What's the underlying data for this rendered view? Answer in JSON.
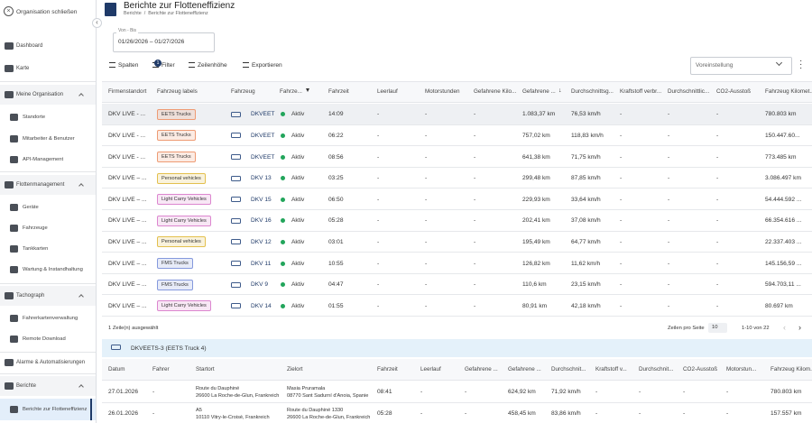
{
  "sidebar": {
    "close": "Organisation schließen",
    "items": [
      {
        "label": "Dashboard",
        "kind": "top"
      },
      {
        "label": "Karte",
        "kind": "top"
      },
      {
        "label": "Meine Organisation",
        "kind": "section"
      },
      {
        "label": "Standorte",
        "kind": "sub"
      },
      {
        "label": "Mitarbeiter & Benutzer",
        "kind": "sub"
      },
      {
        "label": "API-Management",
        "kind": "sub"
      },
      {
        "label": "Flottenmanagement",
        "kind": "section"
      },
      {
        "label": "Geräte",
        "kind": "sub"
      },
      {
        "label": "Fahrzeuge",
        "kind": "sub"
      },
      {
        "label": "Tankkarten",
        "kind": "sub"
      },
      {
        "label": "Wartung & Instandhaltung",
        "kind": "sub"
      },
      {
        "label": "Tachograph",
        "kind": "section"
      },
      {
        "label": "Fahrerkartenverwaltung",
        "kind": "sub"
      },
      {
        "label": "Remote Download",
        "kind": "sub"
      },
      {
        "label": "Alarme & Automatisierungen",
        "kind": "top"
      },
      {
        "label": "Berichte",
        "kind": "section"
      },
      {
        "label": "Berichte zur Flotteneffizienz",
        "kind": "active"
      }
    ]
  },
  "header": {
    "title": "Berichte zur Flotteneffizienz",
    "breadcrumb": [
      "Berichte",
      "/",
      "Berichte zur Flotteneffizienz"
    ]
  },
  "date_range": {
    "label": "Von - Bis",
    "value": "01/26/2026 – 01/27/2026"
  },
  "toolbar": {
    "buttons": [
      "Spalten",
      "Filter",
      "Zeilenhöhe",
      "Exportieren"
    ],
    "filter_badge": "1",
    "preset": "Voreinstellung"
  },
  "table": {
    "columns": [
      "Firmenstandort",
      "Fahrzeug labels",
      "Fahrzeug",
      "Fahrze...",
      "Fahrzeit",
      "Leerlauf",
      "Motorstunden",
      "Gefahrene Kilo...",
      "Gefahrene ...",
      "Durchschnittsg...",
      "Kraftstoff verbr...",
      "Durchschnittlic...",
      "CO2-Ausstoß",
      "Fahrzeug Kilomet..."
    ],
    "rows": [
      {
        "label_color": "#ee9b74",
        "cells": [
          "DKV LIVE - ...",
          "EETS Trucks",
          "DKVEET",
          "Aktiv",
          "14:09",
          "-",
          "-",
          "-",
          "1.083,37 km",
          "76,53 km/h",
          "-",
          "-",
          "-",
          "780.803 km"
        ]
      },
      {
        "label_color": "#ee9b74",
        "cells": [
          "DKV LIVE - ...",
          "EETS Trucks",
          "DKVEET",
          "Aktiv",
          "06:22",
          "-",
          "-",
          "-",
          "757,02 km",
          "118,83 km/h",
          "-",
          "-",
          "-",
          "150.447.60..."
        ]
      },
      {
        "label_color": "#ee9b74",
        "cells": [
          "DKV LIVE - ...",
          "EETS Trucks",
          "DKVEET",
          "Aktiv",
          "08:56",
          "-",
          "-",
          "-",
          "641,38 km",
          "71,75 km/h",
          "-",
          "-",
          "-",
          "773.485 km"
        ]
      },
      {
        "label_color": "#e3c04e",
        "cells": [
          "DKV LIVE – ...",
          "Personal vehicles",
          "DKV 13",
          "Aktiv",
          "03:25",
          "-",
          "-",
          "-",
          "299,48 km",
          "87,85 km/h",
          "-",
          "-",
          "-",
          "3.086.497 km"
        ]
      },
      {
        "label_color": "#dc86cf",
        "cells": [
          "DKV LIVE – ...",
          "Light Carry Vehicles",
          "DKV 15",
          "Aktiv",
          "06:50",
          "-",
          "-",
          "-",
          "229,93 km",
          "33,64 km/h",
          "-",
          "-",
          "-",
          "54.444.592 ..."
        ]
      },
      {
        "label_color": "#dc86cf",
        "cells": [
          "DKV LIVE – ...",
          "Light Carry Vehicles",
          "DKV 16",
          "Aktiv",
          "05:28",
          "-",
          "-",
          "-",
          "202,41 km",
          "37,08 km/h",
          "-",
          "-",
          "-",
          "66.354.616 ..."
        ]
      },
      {
        "label_color": "#e3c04e",
        "cells": [
          "DKV LIVE – ...",
          "Personal vehicles",
          "DKV 12",
          "Aktiv",
          "03:01",
          "-",
          "-",
          "-",
          "195,49 km",
          "64,77 km/h",
          "-",
          "-",
          "-",
          "22.337.403 ..."
        ]
      },
      {
        "label_color": "#8599dd",
        "cells": [
          "DKV LIVE – ...",
          "FMS Trucks",
          "DKV 11",
          "Aktiv",
          "10:55",
          "-",
          "-",
          "-",
          "126,82 km",
          "11,62 km/h",
          "-",
          "-",
          "-",
          "145.156,59 ..."
        ]
      },
      {
        "label_color": "#8599dd",
        "cells": [
          "DKV LIVE – ...",
          "FMS Trucks",
          "DKV 9",
          "Aktiv",
          "04:47",
          "-",
          "-",
          "-",
          "110,6 km",
          "23,15 km/h",
          "-",
          "-",
          "-",
          "594.703,11 ..."
        ]
      },
      {
        "label_color": "#dc86cf",
        "cells": [
          "DKV LIVE – ...",
          "Light Carry Vehicles",
          "DKV 14",
          "Aktiv",
          "01:55",
          "-",
          "-",
          "-",
          "80,91 km",
          "42,18 km/h",
          "-",
          "-",
          "-",
          "80.697 km"
        ]
      }
    ],
    "selected": "1 Zeile(n) ausgewählt",
    "rows_per_page_label": "Zeilen pro Seite",
    "rows_per_page": "10",
    "range": "1-10 von 22"
  },
  "detail": {
    "title": "DKVEETS-3 (EETS Truck 4)",
    "columns": [
      "Datum",
      "Fahrer",
      "Startort",
      "Zielort",
      "Fahrzeit",
      "Leerlauf",
      "Gefahrene ...",
      "Gefahrene ...",
      "Durchschnit...",
      "Kraftstoff v...",
      "Durchschnit...",
      "CO2-Ausstoß",
      "Motorstun...",
      "Fahrzeug Kilom..."
    ],
    "rows": [
      [
        "27.01.2026",
        "-",
        [
          "Route du Dauphiné",
          "26600 La Roche-de-Glun, Frankreich"
        ],
        [
          "Masia Pruramala",
          "08770 Sant Sadurní d'Anoia, Spanie"
        ],
        "08:41",
        "-",
        "-",
        "624,92 km",
        "71,92 km/h",
        "-",
        "-",
        "-",
        "-",
        "780.803 km"
      ],
      [
        "26.01.2026",
        "-",
        [
          "A5",
          "10110 Vitry-le-Croisé, Frankreich"
        ],
        [
          "Route du Dauphiné 1330",
          "26600 La Roche-de-Glun, Frankreich"
        ],
        "05:28",
        "-",
        "-",
        "458,45 km",
        "83,86 km/h",
        "-",
        "-",
        "-",
        "-",
        "157.557 km"
      ]
    ]
  }
}
